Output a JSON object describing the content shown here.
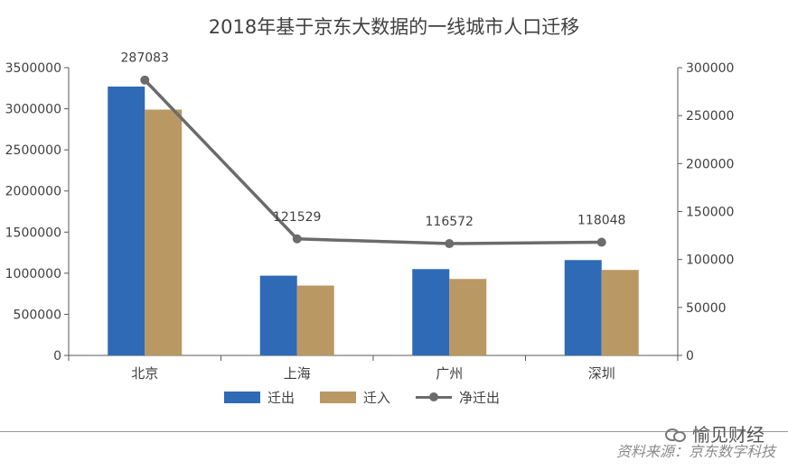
{
  "chart_data": {
    "type": "bar",
    "title": "2018年基于京东大数据的一线城市人口迁移",
    "categories": [
      "北京",
      "上海",
      "广州",
      "深圳"
    ],
    "series": [
      {
        "name": "迁出",
        "type": "bar",
        "axis": "left",
        "color": "#2e6ab5",
        "values": [
          3270000,
          970000,
          1050000,
          1160000
        ]
      },
      {
        "name": "迁入",
        "type": "bar",
        "axis": "left",
        "color": "#b99863",
        "values": [
          2990000,
          850000,
          930000,
          1040000
        ]
      },
      {
        "name": "净迁出",
        "type": "line",
        "axis": "right",
        "color": "#6b6b6b",
        "values": [
          287083,
          121529,
          116572,
          118048
        ]
      }
    ],
    "data_labels": [
      "287083",
      "121529",
      "116572",
      "118048"
    ],
    "left_axis": {
      "ylim": [
        0,
        3500000
      ],
      "ticks": [
        "0",
        "500000",
        "1000000",
        "1500000",
        "2000000",
        "2500000",
        "3000000",
        "3500000"
      ]
    },
    "right_axis": {
      "ylim": [
        0,
        300000
      ],
      "ticks": [
        "0",
        "50000",
        "100000",
        "150000",
        "200000",
        "250000",
        "300000"
      ]
    },
    "legend_position": "bottom",
    "grid": false
  },
  "footer": {
    "watermark": "愉见财经",
    "source": "资料来源：京东数字科技"
  }
}
